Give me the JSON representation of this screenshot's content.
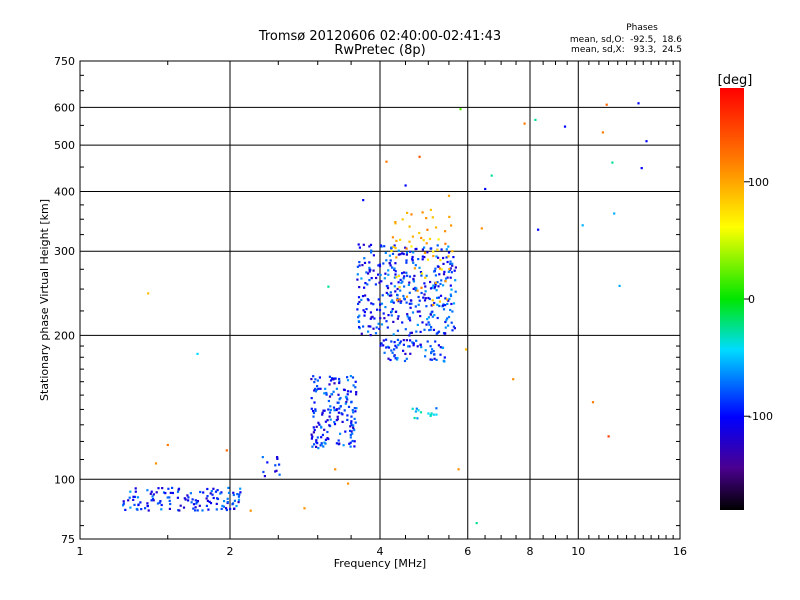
{
  "chart_data": {
    "type": "scatter",
    "title": "Tromsø 20120606 02:40:00-02:41:43",
    "subtitle": "RwPretec (8p)",
    "xlabel": "Frequency [MHz]",
    "ylabel": "Stationary phase Virtual Height [km]",
    "x_scale": "log2",
    "y_scale": "log",
    "xlim": [
      1,
      16
    ],
    "ylim": [
      75,
      750
    ],
    "x_ticks": [
      1,
      2,
      4,
      6,
      8,
      10,
      16
    ],
    "y_ticks": [
      75,
      100,
      200,
      300,
      400,
      500,
      600,
      750
    ],
    "grid": true,
    "stats": {
      "heading": "Phases",
      "line_o": "mean, sd,O:  -92.5,  18.6",
      "line_x": "mean, sd,X:   93.3,  24.5"
    },
    "colorbar": {
      "label": "[deg]",
      "range": [
        -180,
        180
      ],
      "ticks": [
        100,
        0,
        -100
      ],
      "tick_labels": [
        "100",
        "0",
        "-100"
      ]
    },
    "clusters": [
      {
        "x_range": [
          1.22,
          2.1
        ],
        "y_range": [
          86,
          96
        ],
        "phase": -92,
        "count": 130
      },
      {
        "x_range": [
          2.3,
          2.55
        ],
        "y_range": [
          101,
          112
        ],
        "phase": -92,
        "count": 12
      },
      {
        "x_range": [
          2.9,
          3.6
        ],
        "y_range": [
          115,
          165
        ],
        "phase": -95,
        "count": 170
      },
      {
        "x_range": [
          3.6,
          5.7
        ],
        "y_range": [
          200,
          310
        ],
        "phase": -92,
        "count": 360
      },
      {
        "x_range": [
          4.2,
          5.6
        ],
        "y_range": [
          230,
          370
        ],
        "phase": 93,
        "count": 60
      },
      {
        "x_range": [
          4.0,
          5.4
        ],
        "y_range": [
          176,
          196
        ],
        "phase": -92,
        "count": 70
      },
      {
        "x_range": [
          4.6,
          5.2
        ],
        "y_range": [
          133,
          142
        ],
        "phase": -60,
        "count": 14
      }
    ],
    "points": [
      {
        "x": 1.37,
        "y": 245,
        "phase": 90
      },
      {
        "x": 1.42,
        "y": 108,
        "phase": 110
      },
      {
        "x": 1.5,
        "y": 118,
        "phase": 120
      },
      {
        "x": 1.72,
        "y": 183,
        "phase": -50
      },
      {
        "x": 1.97,
        "y": 115,
        "phase": 130
      },
      {
        "x": 2.2,
        "y": 86,
        "phase": 110
      },
      {
        "x": 2.82,
        "y": 87,
        "phase": 110
      },
      {
        "x": 3.7,
        "y": 384,
        "phase": -100
      },
      {
        "x": 4.12,
        "y": 462,
        "phase": 120
      },
      {
        "x": 4.5,
        "y": 412,
        "phase": -100
      },
      {
        "x": 4.8,
        "y": 473,
        "phase": 140
      },
      {
        "x": 5.8,
        "y": 595,
        "phase": 20
      },
      {
        "x": 6.4,
        "y": 335,
        "phase": 110
      },
      {
        "x": 6.5,
        "y": 405,
        "phase": -100
      },
      {
        "x": 6.7,
        "y": 432,
        "phase": -30
      },
      {
        "x": 7.4,
        "y": 162,
        "phase": 110
      },
      {
        "x": 7.8,
        "y": 555,
        "phase": 120
      },
      {
        "x": 8.2,
        "y": 565,
        "phase": -30
      },
      {
        "x": 8.3,
        "y": 333,
        "phase": -100
      },
      {
        "x": 9.4,
        "y": 547,
        "phase": -100
      },
      {
        "x": 10.2,
        "y": 340,
        "phase": -60
      },
      {
        "x": 10.7,
        "y": 145,
        "phase": 120
      },
      {
        "x": 11.2,
        "y": 532,
        "phase": 120
      },
      {
        "x": 11.4,
        "y": 608,
        "phase": 130
      },
      {
        "x": 11.5,
        "y": 123,
        "phase": 150
      },
      {
        "x": 11.7,
        "y": 460,
        "phase": -30
      },
      {
        "x": 11.8,
        "y": 360,
        "phase": -60
      },
      {
        "x": 12.1,
        "y": 254,
        "phase": -60
      },
      {
        "x": 13.2,
        "y": 612,
        "phase": -100
      },
      {
        "x": 13.4,
        "y": 448,
        "phase": -100
      },
      {
        "x": 13.7,
        "y": 510,
        "phase": -100
      },
      {
        "x": 5.75,
        "y": 105,
        "phase": 110
      },
      {
        "x": 5.95,
        "y": 187,
        "phase": 90
      },
      {
        "x": 6.25,
        "y": 81,
        "phase": -30
      },
      {
        "x": 3.25,
        "y": 105,
        "phase": 110
      },
      {
        "x": 3.45,
        "y": 98,
        "phase": 110
      },
      {
        "x": 3.15,
        "y": 253,
        "phase": -30
      },
      {
        "x": 4.95,
        "y": 352,
        "phase": 110
      },
      {
        "x": 5.5,
        "y": 392,
        "phase": 100
      }
    ]
  }
}
